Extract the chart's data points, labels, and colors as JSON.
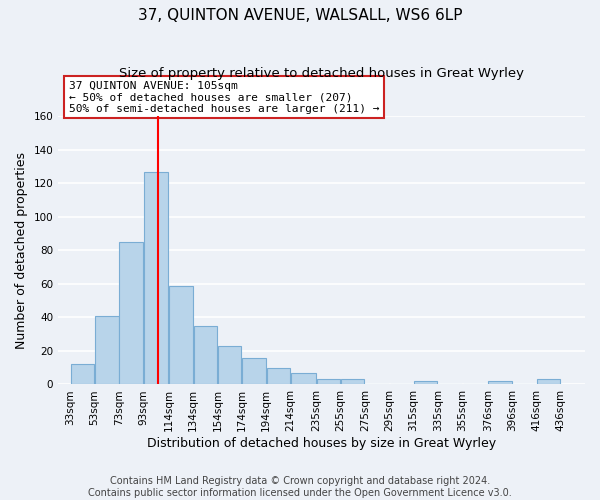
{
  "title": "37, QUINTON AVENUE, WALSALL, WS6 6LP",
  "subtitle": "Size of property relative to detached houses in Great Wyrley",
  "xlabel": "Distribution of detached houses by size in Great Wyrley",
  "ylabel": "Number of detached properties",
  "bar_left_edges": [
    33,
    53,
    73,
    93,
    114,
    134,
    154,
    174,
    194,
    214,
    235,
    255,
    275,
    295,
    315,
    335,
    355,
    376,
    396,
    416
  ],
  "bar_widths": [
    20,
    20,
    20,
    21,
    20,
    20,
    20,
    20,
    20,
    21,
    20,
    20,
    20,
    20,
    20,
    20,
    21,
    20,
    20,
    20
  ],
  "bar_heights": [
    12,
    41,
    85,
    127,
    59,
    35,
    23,
    16,
    10,
    7,
    3,
    3,
    0,
    0,
    2,
    0,
    0,
    2,
    0,
    3
  ],
  "bar_color": "#b8d4ea",
  "bar_edge_color": "#7aadd4",
  "red_line_x": 105,
  "ylim": [
    0,
    160
  ],
  "yticks": [
    0,
    20,
    40,
    60,
    80,
    100,
    120,
    140,
    160
  ],
  "xtick_labels": [
    "33sqm",
    "53sqm",
    "73sqm",
    "93sqm",
    "114sqm",
    "134sqm",
    "154sqm",
    "174sqm",
    "194sqm",
    "214sqm",
    "235sqm",
    "255sqm",
    "275sqm",
    "295sqm",
    "315sqm",
    "335sqm",
    "355sqm",
    "376sqm",
    "396sqm",
    "416sqm",
    "436sqm"
  ],
  "xtick_positions": [
    33,
    53,
    73,
    93,
    114,
    134,
    154,
    174,
    194,
    214,
    235,
    255,
    275,
    295,
    315,
    335,
    355,
    376,
    396,
    416,
    436
  ],
  "annotation_line1": "37 QUINTON AVENUE: 105sqm",
  "annotation_line2": "← 50% of detached houses are smaller (207)",
  "annotation_line3": "50% of semi-detached houses are larger (211) →",
  "footer_line1": "Contains HM Land Registry data © Crown copyright and database right 2024.",
  "footer_line2": "Contains public sector information licensed under the Open Government Licence v3.0.",
  "background_color": "#edf1f7",
  "grid_color": "#ffffff",
  "title_fontsize": 11,
  "subtitle_fontsize": 9.5,
  "axis_label_fontsize": 9,
  "tick_fontsize": 7.5,
  "footer_fontsize": 7
}
